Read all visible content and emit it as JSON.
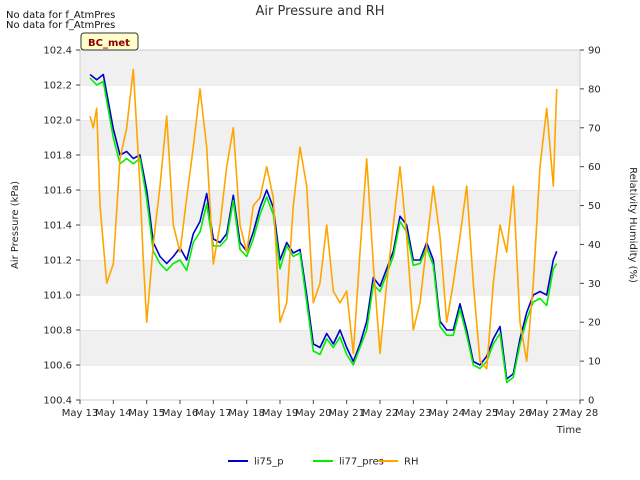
{
  "notes": [
    "No data for f_AtmPres",
    "No data for f_AtmPres"
  ],
  "station_label": "BC_met",
  "chart_data": {
    "type": "line",
    "title": "Air Pressure and RH",
    "xlabel": "Time",
    "ylabel": "Air Pressure (kPa)",
    "y2label": "Relativity Humidity (%)",
    "x_ticks": [
      "May 13",
      "May 14",
      "May 15",
      "May 16",
      "May 17",
      "May 18",
      "May 19",
      "May 20",
      "May 21",
      "May 22",
      "May 23",
      "May 24",
      "May 25",
      "May 26",
      "May 27",
      "May 28"
    ],
    "x_range": [
      0,
      15
    ],
    "ylim": [
      100.4,
      102.4
    ],
    "y_ticks": [
      "100.4",
      "100.6",
      "100.8",
      "101.0",
      "101.2",
      "101.4",
      "101.6",
      "101.8",
      "102.0",
      "102.2",
      "102.4"
    ],
    "y2lim": [
      0,
      90
    ],
    "y2_ticks": [
      "0",
      "10",
      "20",
      "30",
      "40",
      "50",
      "60",
      "70",
      "80",
      "90"
    ],
    "legend_position": "bottom-center",
    "series": [
      {
        "name": "li75_p",
        "color": "#0000cc",
        "axis": "left",
        "x": [
          0.3,
          0.5,
          0.7,
          1.0,
          1.2,
          1.4,
          1.6,
          1.8,
          2.0,
          2.2,
          2.4,
          2.6,
          2.8,
          3.0,
          3.2,
          3.4,
          3.6,
          3.8,
          4.0,
          4.2,
          4.4,
          4.6,
          4.8,
          5.0,
          5.2,
          5.4,
          5.6,
          5.8,
          6.0,
          6.2,
          6.4,
          6.6,
          6.8,
          7.0,
          7.2,
          7.4,
          7.6,
          7.8,
          8.0,
          8.2,
          8.4,
          8.6,
          8.8,
          9.0,
          9.2,
          9.4,
          9.6,
          9.8,
          10.0,
          10.2,
          10.4,
          10.6,
          10.8,
          11.0,
          11.2,
          11.4,
          11.6,
          11.8,
          12.0,
          12.2,
          12.4,
          12.6,
          12.8,
          13.0,
          13.2,
          13.4,
          13.6,
          13.8,
          14.0,
          14.2,
          14.3
        ],
        "y": [
          102.26,
          102.23,
          102.26,
          101.95,
          101.8,
          101.82,
          101.78,
          101.8,
          101.6,
          101.3,
          101.22,
          101.18,
          101.22,
          101.27,
          101.2,
          101.35,
          101.42,
          101.58,
          101.32,
          101.3,
          101.35,
          101.57,
          101.3,
          101.25,
          101.36,
          101.5,
          101.6,
          101.5,
          101.2,
          101.3,
          101.24,
          101.26,
          101.0,
          100.72,
          100.7,
          100.78,
          100.72,
          100.8,
          100.7,
          100.62,
          100.72,
          100.85,
          101.1,
          101.05,
          101.15,
          101.25,
          101.45,
          101.4,
          101.2,
          101.2,
          101.3,
          101.2,
          100.85,
          100.8,
          100.8,
          100.95,
          100.8,
          100.62,
          100.6,
          100.65,
          100.75,
          100.82,
          100.52,
          100.55,
          100.75,
          100.9,
          101.0,
          101.02,
          101.0,
          101.2,
          101.25
        ]
      },
      {
        "name": "li77_pres",
        "color": "#00ee00",
        "axis": "left",
        "x": [
          0.3,
          0.5,
          0.7,
          1.0,
          1.2,
          1.4,
          1.6,
          1.8,
          2.0,
          2.2,
          2.4,
          2.6,
          2.8,
          3.0,
          3.2,
          3.4,
          3.6,
          3.8,
          4.0,
          4.2,
          4.4,
          4.6,
          4.8,
          5.0,
          5.2,
          5.4,
          5.6,
          5.8,
          6.0,
          6.2,
          6.4,
          6.6,
          6.8,
          7.0,
          7.2,
          7.4,
          7.6,
          7.8,
          8.0,
          8.2,
          8.4,
          8.6,
          8.8,
          9.0,
          9.2,
          9.4,
          9.6,
          9.8,
          10.0,
          10.2,
          10.4,
          10.6,
          10.8,
          11.0,
          11.2,
          11.4,
          11.6,
          11.8,
          12.0,
          12.2,
          12.4,
          12.6,
          12.8,
          13.0,
          13.2,
          13.4,
          13.6,
          13.8,
          14.0,
          14.2,
          14.3
        ],
        "y": [
          102.24,
          102.2,
          102.22,
          101.9,
          101.75,
          101.78,
          101.75,
          101.78,
          101.55,
          101.25,
          101.18,
          101.14,
          101.18,
          101.2,
          101.14,
          101.3,
          101.36,
          101.52,
          101.28,
          101.28,
          101.32,
          101.54,
          101.26,
          101.22,
          101.32,
          101.46,
          101.56,
          101.46,
          101.15,
          101.28,
          101.22,
          101.24,
          100.96,
          100.68,
          100.66,
          100.75,
          100.7,
          100.76,
          100.66,
          100.6,
          100.7,
          100.8,
          101.06,
          101.02,
          101.12,
          101.22,
          101.42,
          101.36,
          101.17,
          101.18,
          101.27,
          101.17,
          100.82,
          100.77,
          100.77,
          100.92,
          100.77,
          100.6,
          100.58,
          100.62,
          100.72,
          100.78,
          100.5,
          100.53,
          100.72,
          100.86,
          100.96,
          100.98,
          100.94,
          101.15,
          101.18
        ]
      },
      {
        "name": "RH",
        "color": "#ffa500",
        "axis": "right",
        "x": [
          0.3,
          0.4,
          0.5,
          0.6,
          0.8,
          1.0,
          1.2,
          1.4,
          1.6,
          1.8,
          1.9,
          2.0,
          2.2,
          2.4,
          2.6,
          2.8,
          3.0,
          3.2,
          3.4,
          3.6,
          3.8,
          4.0,
          4.2,
          4.4,
          4.6,
          4.8,
          5.0,
          5.2,
          5.4,
          5.6,
          5.8,
          6.0,
          6.2,
          6.4,
          6.6,
          6.8,
          7.0,
          7.2,
          7.4,
          7.6,
          7.8,
          8.0,
          8.2,
          8.4,
          8.6,
          8.8,
          9.0,
          9.2,
          9.4,
          9.6,
          9.8,
          10.0,
          10.2,
          10.4,
          10.6,
          10.8,
          11.0,
          11.2,
          11.4,
          11.6,
          11.8,
          12.0,
          12.2,
          12.4,
          12.6,
          12.8,
          13.0,
          13.2,
          13.4,
          13.6,
          13.8,
          14.0,
          14.2,
          14.3
        ],
        "y": [
          73,
          70,
          75,
          50,
          30,
          35,
          62,
          70,
          85,
          55,
          36,
          20,
          40,
          55,
          73,
          45,
          38,
          52,
          65,
          80,
          65,
          35,
          45,
          60,
          70,
          45,
          38,
          50,
          52,
          60,
          52,
          20,
          25,
          50,
          65,
          55,
          25,
          30,
          45,
          28,
          25,
          28,
          12,
          38,
          62,
          35,
          12,
          30,
          45,
          60,
          42,
          18,
          25,
          40,
          55,
          42,
          20,
          30,
          42,
          55,
          30,
          10,
          8,
          30,
          45,
          38,
          55,
          20,
          10,
          30,
          60,
          75,
          55,
          80
        ]
      }
    ]
  }
}
